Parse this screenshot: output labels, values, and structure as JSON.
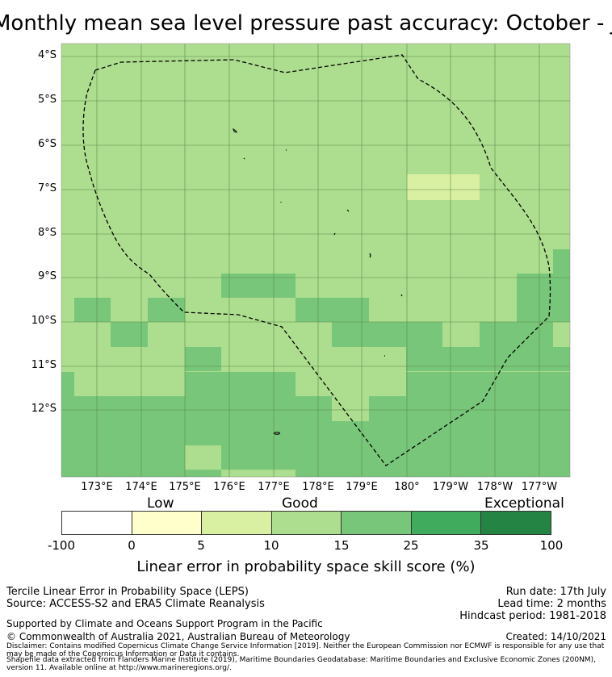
{
  "title": "Monthly mean sea level pressure past accuracy: October - January",
  "map": {
    "lat_labels": [
      "4°S",
      "5°S",
      "6°S",
      "7°S",
      "8°S",
      "9°S",
      "10°S",
      "11°S",
      "12°S"
    ],
    "lon_labels": [
      "173°E",
      "174°E",
      "175°E",
      "176°E",
      "177°E",
      "178°E",
      "179°E",
      "180°",
      "179°W",
      "178°W",
      "177°W"
    ],
    "colors": {
      "low": "#ffffff",
      "c1": "#ffffcc",
      "c2": "#d9f0a3",
      "c3": "#addd8e",
      "c4": "#78c679",
      "c5": "#41ab5d",
      "c6": "#238443",
      "boundary": "#000000"
    }
  },
  "legend": {
    "categories": [
      "Low",
      "Good",
      "Exceptional"
    ],
    "ticks": [
      "-100",
      "0",
      "5",
      "10",
      "15",
      "25",
      "35",
      "100"
    ],
    "title": "Linear error in probability space skill score (%)"
  },
  "info": {
    "left_line1": "Tercile Linear Error in Probability Space (LEPS)",
    "left_line2": "Source: ACCESS-S2 and ERA5 Climate Reanalysis",
    "run_date": "Run date: 17th July",
    "lead_time": "Lead time: 2 months",
    "hindcast": "Hindcast period: 1981-2018",
    "supported": "Supported by Climate and Oceans Support Program in the Pacific",
    "copyright": "© Commonwealth of Australia 2021, Australian Bureau of Meteorology",
    "created": "Created: 14/10/2021",
    "disclaimer": "Disclaimer: Contains modified Copernicus Climate Change Service Information [2019]. Neither the European Commission nor ECMWF is responsible for any use that may be made of the Copernicus Information or Data it contains.",
    "shapefile": "Shapefile data extracted from Flanders Marine Institute (2019), Maritime Boundaries Geodatabase: Maritime Boundaries and Exclusive Economic Zones (200NM), version 11. Available online at http://www.marineregions.org/."
  }
}
